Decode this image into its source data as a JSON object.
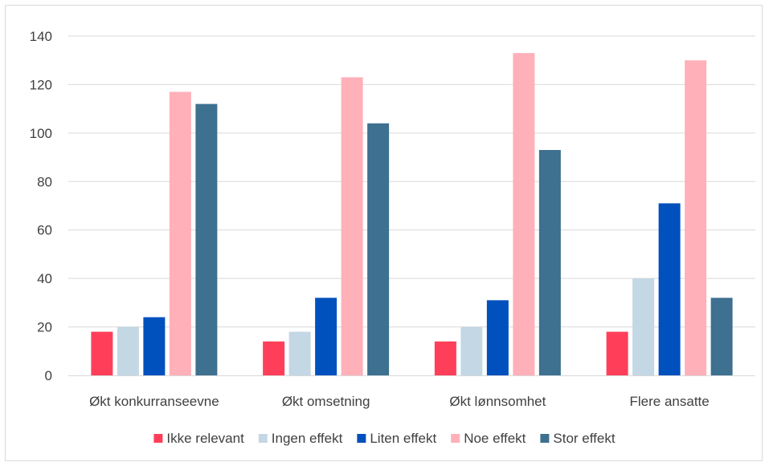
{
  "chart_data": {
    "type": "bar",
    "title": "",
    "xlabel": "",
    "ylabel": "",
    "ylim": [
      0,
      140
    ],
    "yticks": [
      0,
      20,
      40,
      60,
      80,
      100,
      120,
      140
    ],
    "grid": true,
    "legend_position": "bottom",
    "categories": [
      "Økt konkurranseevne",
      "Økt omsetning",
      "Økt lønnsomhet",
      "Flere ansatte"
    ],
    "series": [
      {
        "name": "Ikke relevant",
        "color": "#ff3f5a",
        "values": [
          18,
          14,
          14,
          18
        ]
      },
      {
        "name": "Ingen effekt",
        "color": "#c3d7e4",
        "values": [
          20,
          18,
          20,
          40
        ]
      },
      {
        "name": "Liten effekt",
        "color": "#0050be",
        "values": [
          24,
          32,
          31,
          71
        ]
      },
      {
        "name": "Noe effekt",
        "color": "#ffb0b9",
        "values": [
          117,
          123,
          133,
          130
        ]
      },
      {
        "name": "Stor effekt",
        "color": "#3e7090",
        "values": [
          112,
          104,
          93,
          32
        ]
      }
    ]
  }
}
